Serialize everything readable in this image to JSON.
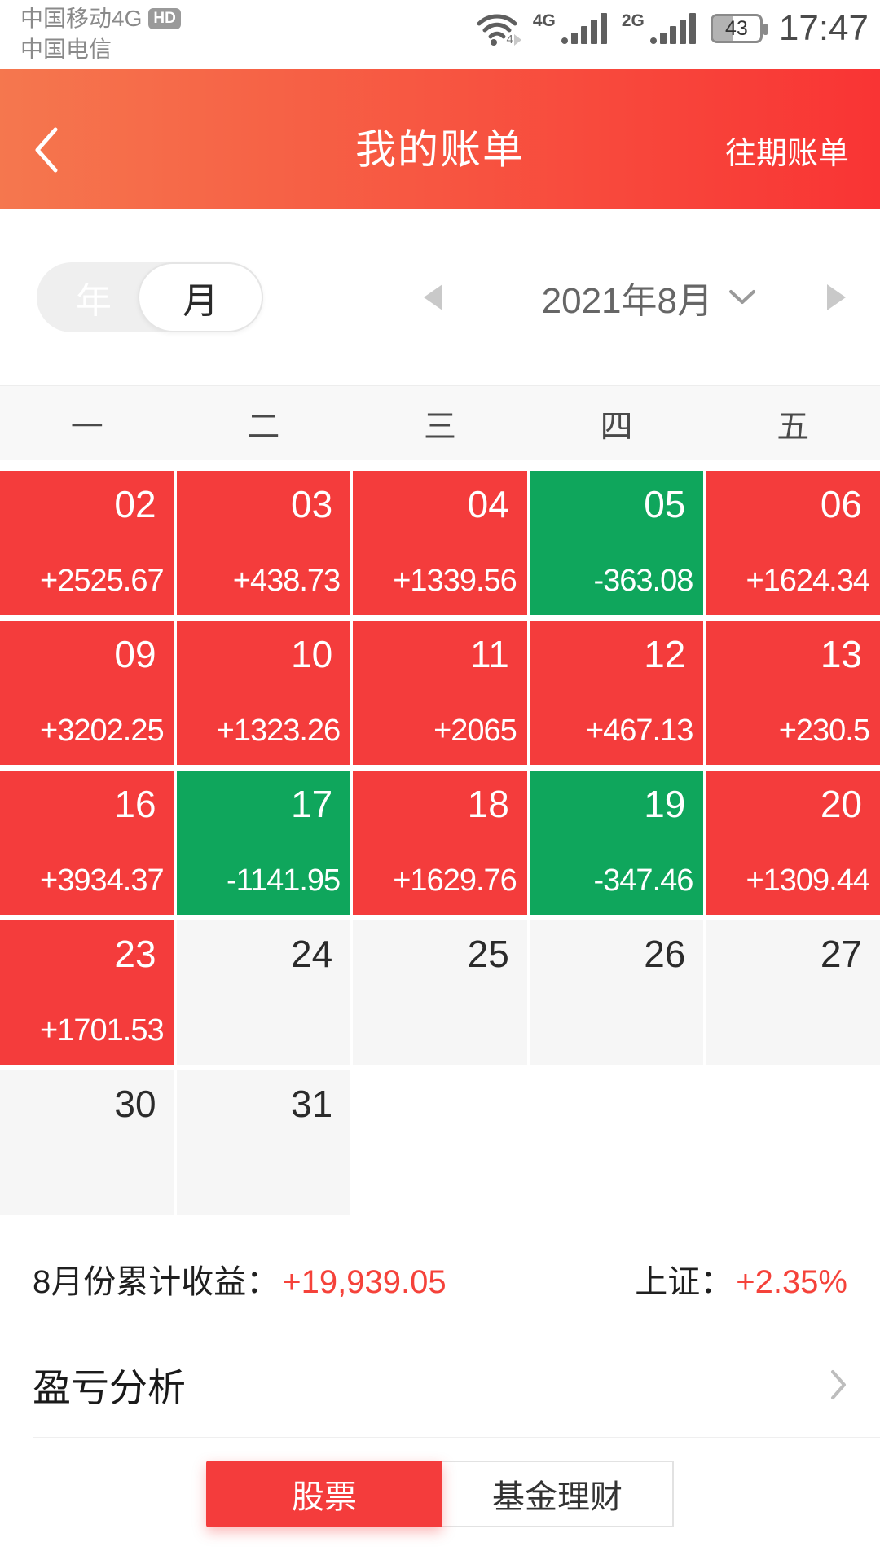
{
  "colors": {
    "profit_red": "#f43c3c",
    "loss_green": "#0fa65c",
    "inactive_gray": "#f6f6f6",
    "header_gradient_start": "#f5774e",
    "header_gradient_end": "#f93434",
    "value_red": "#f5423a"
  },
  "status_bar": {
    "carrier_line1": "中国移动4G",
    "hd_badge": "HD",
    "carrier_line2": "中国电信",
    "wifi_sub_label": "4",
    "network_badge_1": "4G",
    "network_badge_2": "2G",
    "battery_percent": "43",
    "time": "17:47"
  },
  "header": {
    "title": "我的账单",
    "action": "往期账单"
  },
  "filter_toggle": {
    "year_label": "年",
    "month_label": "月",
    "selected": "月"
  },
  "period_selector": {
    "label": "2021年8月"
  },
  "calendar": {
    "weekdays": [
      "一",
      "二",
      "三",
      "四",
      "五"
    ],
    "cells": [
      {
        "date": "02",
        "value": "+2525.67",
        "type": "profit"
      },
      {
        "date": "03",
        "value": "+438.73",
        "type": "profit"
      },
      {
        "date": "04",
        "value": "+1339.56",
        "type": "profit"
      },
      {
        "date": "05",
        "value": "-363.08",
        "type": "loss"
      },
      {
        "date": "06",
        "value": "+1624.34",
        "type": "profit"
      },
      {
        "date": "09",
        "value": "+3202.25",
        "type": "profit"
      },
      {
        "date": "10",
        "value": "+1323.26",
        "type": "profit"
      },
      {
        "date": "11",
        "value": "+2065",
        "type": "profit"
      },
      {
        "date": "12",
        "value": "+467.13",
        "type": "profit"
      },
      {
        "date": "13",
        "value": "+230.5",
        "type": "profit"
      },
      {
        "date": "16",
        "value": "+3934.37",
        "type": "profit"
      },
      {
        "date": "17",
        "value": "-1141.95",
        "type": "loss"
      },
      {
        "date": "18",
        "value": "+1629.76",
        "type": "profit"
      },
      {
        "date": "19",
        "value": "-347.46",
        "type": "loss"
      },
      {
        "date": "20",
        "value": "+1309.44",
        "type": "profit"
      },
      {
        "date": "23",
        "value": "+1701.53",
        "type": "profit"
      },
      {
        "date": "24",
        "value": "",
        "type": "inactive"
      },
      {
        "date": "25",
        "value": "",
        "type": "inactive"
      },
      {
        "date": "26",
        "value": "",
        "type": "inactive"
      },
      {
        "date": "27",
        "value": "",
        "type": "inactive"
      },
      {
        "date": "30",
        "value": "",
        "type": "inactive"
      },
      {
        "date": "31",
        "value": "",
        "type": "inactive"
      },
      {
        "date": "",
        "value": "",
        "type": "blank"
      },
      {
        "date": "",
        "value": "",
        "type": "blank"
      },
      {
        "date": "",
        "value": "",
        "type": "blank"
      }
    ]
  },
  "summary": {
    "label": "8月份累计收益：",
    "value": "+19,939.05",
    "index_label": "上证：",
    "index_value": "+2.35%"
  },
  "analysis": {
    "title": "盈亏分析"
  },
  "tabs": [
    {
      "label": "股票",
      "active": true
    },
    {
      "label": "基金理财",
      "active": false
    }
  ]
}
